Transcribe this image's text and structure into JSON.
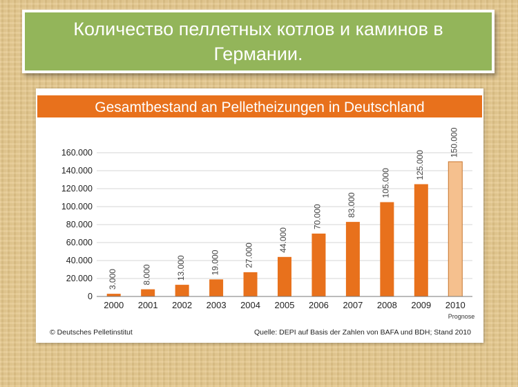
{
  "slide": {
    "title": "Количество пеллетных котлов и каминов в Германии."
  },
  "chart_data": {
    "type": "bar",
    "title": "Gesamtbestand an Pelletheizungen in Deutschland",
    "categories": [
      "2000",
      "2001",
      "2002",
      "2003",
      "2004",
      "2005",
      "2006",
      "2007",
      "2008",
      "2009",
      "2010"
    ],
    "values": [
      3000,
      8000,
      13000,
      19000,
      27000,
      44000,
      70000,
      83000,
      105000,
      125000,
      150000
    ],
    "value_labels": [
      "3.000",
      "8.000",
      "13.000",
      "19.000",
      "27.000",
      "44.000",
      "70.000",
      "83.000",
      "105.000",
      "125.000",
      "150.000"
    ],
    "forecast_index": 10,
    "forecast_label": "Prognose",
    "ylim": [
      0,
      160000
    ],
    "yticks": [
      0,
      20000,
      40000,
      60000,
      80000,
      100000,
      120000,
      140000,
      160000
    ],
    "ytick_labels": [
      "0",
      "20.000",
      "40.000",
      "60.000",
      "80.000",
      "100.000",
      "120.000",
      "140.000",
      "160.000"
    ],
    "grid": true,
    "bar_color": "#e8711c",
    "forecast_color": "#f5c08e",
    "header_color": "#e8711c",
    "copyright": "© Deutsches Pelletinstitut",
    "source": "Quelle: DEPI auf Basis der Zahlen von BAFA und BDH; Stand 2010"
  }
}
